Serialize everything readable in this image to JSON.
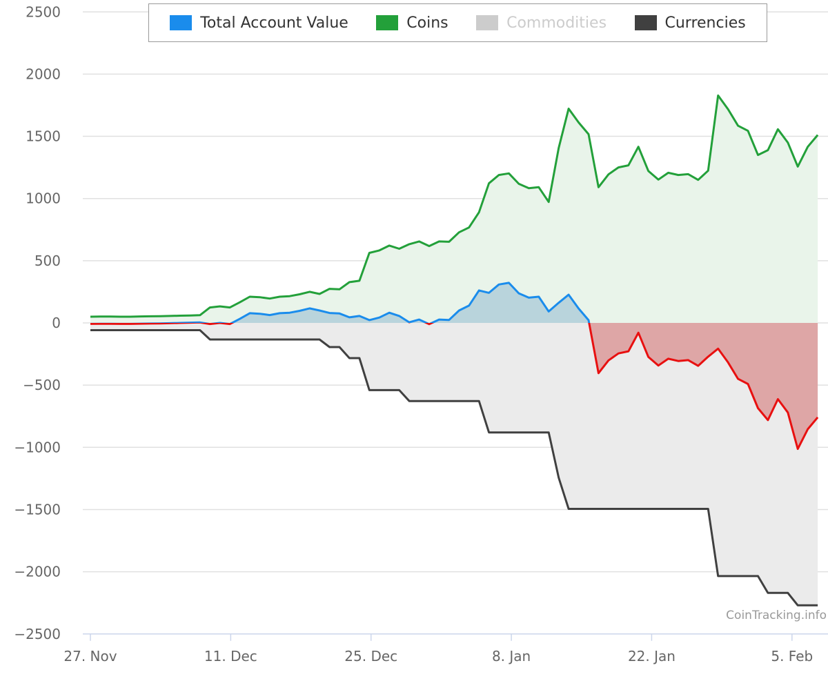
{
  "chart_data": {
    "type": "area",
    "title": "",
    "xlabel": "",
    "ylabel": "",
    "start_date": "27 Nov",
    "x_interval": "daily",
    "ylim": [
      -2500,
      2500
    ],
    "yticks": [
      "2500",
      "2000",
      "1500",
      "1000",
      "500",
      "0",
      "−500",
      "−1000",
      "−1500",
      "−2000",
      "−2500"
    ],
    "ytick_values": [
      2500,
      2000,
      1500,
      1000,
      500,
      0,
      -500,
      -1000,
      -1500,
      -2000,
      -2500
    ],
    "xticks": [
      {
        "label": "27. Nov",
        "day": 0
      },
      {
        "label": "11. Dec",
        "day": 14
      },
      {
        "label": "25. Dec",
        "day": 28
      },
      {
        "label": "8. Jan",
        "day": 42
      },
      {
        "label": "22. Jan",
        "day": 56
      },
      {
        "label": "5. Feb",
        "day": 70
      }
    ],
    "grid": true,
    "legend_position": "top",
    "series": [
      {
        "name": "Total Account Value",
        "color": "#1a8cec",
        "negative_color": "#e81010",
        "fill": "#b9d4dc",
        "negative_fill": "#dea6a6",
        "visible": true,
        "values": [
          -8,
          -7,
          -7,
          -8,
          -8,
          -6,
          -5,
          -4,
          -2,
          0,
          2,
          4,
          -9,
          0,
          -9,
          33,
          78,
          74,
          63,
          78,
          82,
          97,
          117,
          100,
          80,
          76,
          45,
          56,
          23,
          43,
          82,
          56,
          5,
          27,
          -10,
          27,
          24,
          100,
          139,
          261,
          242,
          309,
          322,
          238,
          203,
          211,
          92,
          162,
          227,
          116,
          22,
          -404,
          -301,
          -245,
          -228,
          -79,
          -273,
          -343,
          -288,
          -306,
          -299,
          -345,
          -271,
          -207,
          -318,
          -450,
          -491,
          -685,
          -781,
          -613,
          -720,
          -1013,
          -854,
          -759
        ]
      },
      {
        "name": "Coins",
        "color": "#23a03a",
        "fill": "#e9f4ea",
        "visible": true,
        "values": [
          50,
          51,
          51,
          50,
          50,
          52,
          53,
          54,
          56,
          58,
          60,
          62,
          124,
          133,
          124,
          166,
          211,
          207,
          196,
          211,
          215,
          230,
          250,
          233,
          274,
          270,
          328,
          339,
          563,
          583,
          622,
          596,
          633,
          655,
          618,
          655,
          652,
          728,
          767,
          889,
          1122,
          1189,
          1202,
          1118,
          1083,
          1091,
          972,
          1406,
          1722,
          1611,
          1517,
          1091,
          1194,
          1250,
          1267,
          1416,
          1222,
          1152,
          1207,
          1189,
          1196,
          1150,
          1224,
          1828,
          1717,
          1585,
          1544,
          1350,
          1389,
          1557,
          1450,
          1257,
          1416,
          1511
        ]
      },
      {
        "name": "Commodities",
        "color": "#cccccc",
        "visible": false,
        "values": []
      },
      {
        "name": "Currencies",
        "color": "#404040",
        "fill": "#ebebeb",
        "visible": true,
        "values": [
          -58,
          -58,
          -58,
          -58,
          -58,
          -58,
          -58,
          -58,
          -58,
          -58,
          -58,
          -58,
          -133,
          -133,
          -133,
          -133,
          -133,
          -133,
          -133,
          -133,
          -133,
          -133,
          -133,
          -133,
          -194,
          -194,
          -283,
          -283,
          -540,
          -540,
          -540,
          -540,
          -628,
          -628,
          -628,
          -628,
          -628,
          -628,
          -628,
          -628,
          -880,
          -880,
          -880,
          -880,
          -880,
          -880,
          -880,
          -1244,
          -1495,
          -1495,
          -1495,
          -1495,
          -1495,
          -1495,
          -1495,
          -1495,
          -1495,
          -1495,
          -1495,
          -1495,
          -1495,
          -1495,
          -1495,
          -2035,
          -2035,
          -2035,
          -2035,
          -2035,
          -2170,
          -2170,
          -2170,
          -2270,
          -2270,
          -2270
        ]
      }
    ]
  },
  "watermark": "CoinTracking.info"
}
